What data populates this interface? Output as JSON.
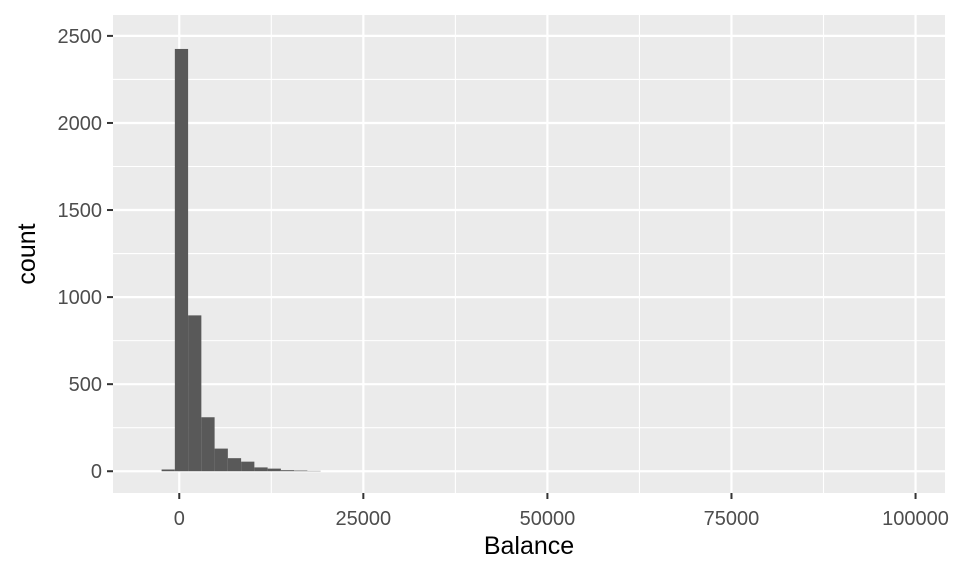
{
  "chart_data": {
    "type": "bar",
    "subtype": "histogram",
    "title": "",
    "xlabel": "Balance",
    "ylabel": "count",
    "xlim": [
      -9000,
      104000
    ],
    "ylim": [
      -125,
      2620
    ],
    "x_ticks": [
      0,
      25000,
      50000,
      75000,
      100000
    ],
    "x_tick_labels": [
      "0",
      "25000",
      "50000",
      "75000",
      "100000"
    ],
    "y_ticks": [
      0,
      500,
      1000,
      1500,
      2000,
      2500
    ],
    "y_tick_labels": [
      "0",
      "500",
      "1000",
      "1500",
      "2000",
      "2500"
    ],
    "bin_width": 1800,
    "bins": [
      {
        "x0": -2400,
        "x1": -600,
        "count": 10
      },
      {
        "x0": -600,
        "x1": 1200,
        "count": 2425
      },
      {
        "x0": 1200,
        "x1": 3000,
        "count": 895
      },
      {
        "x0": 3000,
        "x1": 4800,
        "count": 310
      },
      {
        "x0": 4800,
        "x1": 6600,
        "count": 130
      },
      {
        "x0": 6600,
        "x1": 8400,
        "count": 75
      },
      {
        "x0": 8400,
        "x1": 10200,
        "count": 55
      },
      {
        "x0": 10200,
        "x1": 12000,
        "count": 22
      },
      {
        "x0": 12000,
        "x1": 13800,
        "count": 15
      },
      {
        "x0": 13800,
        "x1": 15600,
        "count": 6
      },
      {
        "x0": 15600,
        "x1": 17400,
        "count": 4
      },
      {
        "x0": 17400,
        "x1": 19200,
        "count": 2
      }
    ],
    "grid": true,
    "legend": "none",
    "colors": {
      "panel_background": "#ebebeb",
      "grid_major": "#ffffff",
      "bar_fill": "#595959",
      "tick_text": "#4d4d4d",
      "axis_ticks": "#333333"
    }
  }
}
